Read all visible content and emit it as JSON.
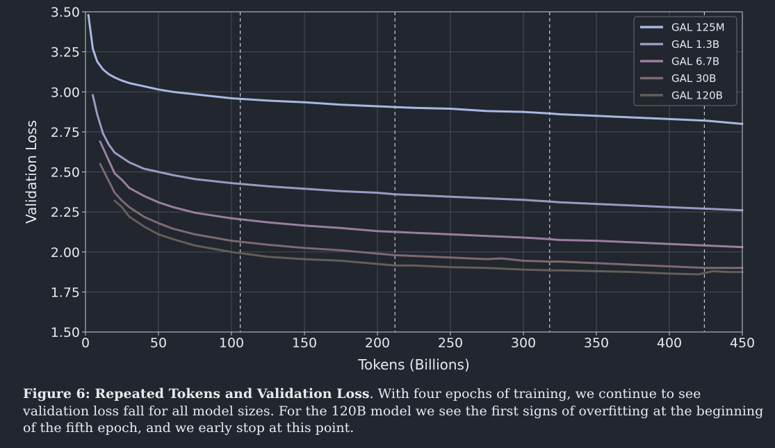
{
  "chart_data": {
    "type": "line",
    "xlabel": "Tokens (Billions)",
    "ylabel": "Validation Loss",
    "xlim": [
      0,
      450
    ],
    "ylim": [
      1.5,
      3.5
    ],
    "xticks": [
      "0",
      "50",
      "100",
      "150",
      "200",
      "250",
      "300",
      "350",
      "400",
      "450"
    ],
    "yticks": [
      "1.50",
      "1.75",
      "2.00",
      "2.25",
      "2.50",
      "2.75",
      "3.00",
      "3.25",
      "3.50"
    ],
    "grid": true,
    "legend_position": "top-right",
    "epoch_boundaries": [
      106,
      212,
      318,
      424
    ],
    "series": [
      {
        "name": "GAL 125M",
        "color": "#a9b8e4",
        "x": [
          2,
          5,
          8,
          12,
          16,
          20,
          25,
          30,
          40,
          50,
          60,
          75,
          100,
          125,
          150,
          175,
          200,
          212,
          225,
          250,
          275,
          300,
          318,
          325,
          350,
          375,
          400,
          425,
          450
        ],
        "y": [
          3.48,
          3.27,
          3.19,
          3.14,
          3.11,
          3.09,
          3.07,
          3.055,
          3.035,
          3.015,
          3.0,
          2.985,
          2.96,
          2.945,
          2.935,
          2.92,
          2.91,
          2.905,
          2.9,
          2.895,
          2.88,
          2.875,
          2.865,
          2.86,
          2.85,
          2.84,
          2.83,
          2.82,
          2.8
        ]
      },
      {
        "name": "GAL 1.3B",
        "color": "#9f98c6",
        "x": [
          5,
          8,
          12,
          16,
          20,
          25,
          30,
          40,
          50,
          60,
          75,
          100,
          125,
          150,
          175,
          200,
          212,
          225,
          250,
          275,
          300,
          318,
          325,
          350,
          375,
          400,
          425,
          450
        ],
        "y": [
          2.98,
          2.86,
          2.74,
          2.67,
          2.62,
          2.59,
          2.56,
          2.52,
          2.5,
          2.48,
          2.455,
          2.43,
          2.41,
          2.395,
          2.38,
          2.37,
          2.36,
          2.355,
          2.345,
          2.335,
          2.325,
          2.315,
          2.31,
          2.3,
          2.29,
          2.28,
          2.27,
          2.26
        ]
      },
      {
        "name": "GAL 6.7B",
        "color": "#9a7fa0",
        "x": [
          10,
          15,
          20,
          25,
          30,
          40,
          50,
          60,
          75,
          100,
          125,
          150,
          175,
          200,
          212,
          225,
          250,
          275,
          300,
          318,
          325,
          350,
          375,
          400,
          425,
          450
        ],
        "y": [
          2.69,
          2.59,
          2.49,
          2.45,
          2.4,
          2.35,
          2.31,
          2.28,
          2.245,
          2.21,
          2.185,
          2.165,
          2.15,
          2.13,
          2.125,
          2.12,
          2.11,
          2.1,
          2.09,
          2.08,
          2.075,
          2.07,
          2.06,
          2.05,
          2.04,
          2.03
        ]
      },
      {
        "name": "GAL 30B",
        "color": "#7d6a72",
        "x": [
          10,
          15,
          20,
          25,
          30,
          40,
          50,
          60,
          75,
          100,
          125,
          150,
          175,
          200,
          212,
          225,
          250,
          275,
          285,
          300,
          318,
          325,
          350,
          375,
          400,
          425,
          450
        ],
        "y": [
          2.55,
          2.46,
          2.37,
          2.32,
          2.28,
          2.22,
          2.18,
          2.145,
          2.11,
          2.07,
          2.045,
          2.025,
          2.01,
          1.99,
          1.98,
          1.975,
          1.965,
          1.955,
          1.96,
          1.945,
          1.94,
          1.94,
          1.93,
          1.92,
          1.91,
          1.9,
          1.9
        ]
      },
      {
        "name": "GAL 120B",
        "color": "#635e58",
        "x": [
          20,
          25,
          30,
          40,
          50,
          60,
          75,
          100,
          125,
          150,
          175,
          200,
          212,
          225,
          250,
          275,
          300,
          318,
          325,
          350,
          375,
          400,
          420,
          430,
          440,
          450
        ],
        "y": [
          2.32,
          2.28,
          2.22,
          2.16,
          2.11,
          2.08,
          2.04,
          2.0,
          1.97,
          1.955,
          1.945,
          1.925,
          1.915,
          1.915,
          1.905,
          1.9,
          1.89,
          1.885,
          1.885,
          1.88,
          1.875,
          1.865,
          1.86,
          1.88,
          1.875,
          1.875
        ]
      }
    ]
  },
  "caption": {
    "label": "Figure 6: Repeated Tokens and Validation Loss",
    "text": ". With four epochs of training, we continue to see validation loss fall for all model sizes. For the 120B model we see the first signs of overfitting at the beginning of the fifth epoch, and we early stop at this point."
  }
}
